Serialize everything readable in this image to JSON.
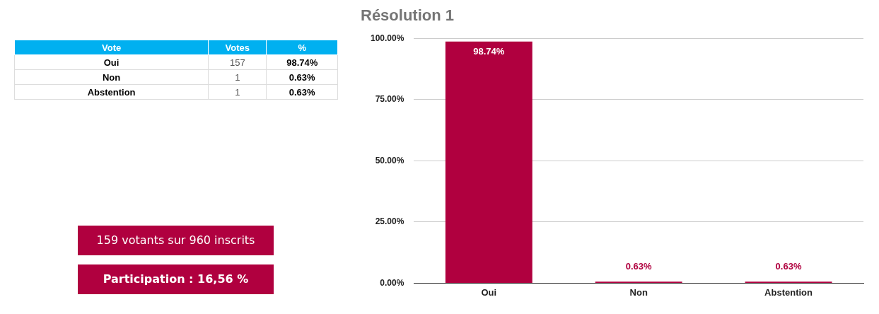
{
  "chart_data": [
    {
      "type": "other",
      "annotations": [
        "Vote",
        "Votes",
        "%",
        "Oui",
        "157",
        "98.74%",
        "Non",
        "1",
        "0.63%",
        "Abstention",
        "1",
        "0.63%"
      ]
    },
    {
      "type": "bar",
      "title": "Résolution 1",
      "categories": [
        "Oui",
        "Non",
        "Abstention"
      ],
      "values": [
        98.74,
        0.63,
        0.63
      ],
      "color": "#b0003f",
      "value_labels": [
        "98.74%",
        "0.63%",
        "0.63%"
      ],
      "ylim": [
        0,
        100
      ],
      "yticks": [
        {
          "value": 0,
          "label": "0.00%"
        },
        {
          "value": 25,
          "label": "25.00%"
        },
        {
          "value": 50,
          "label": "50.00%"
        },
        {
          "value": 75,
          "label": "75.00%"
        },
        {
          "value": 100,
          "label": "100.00%"
        }
      ],
      "grid": "y",
      "legend": false
    },
    {
      "type": "other",
      "annotations": [
        "159 votants sur 960 inscrits",
        "Participation : 16,56 %"
      ],
      "color": "#b0003f"
    }
  ]
}
